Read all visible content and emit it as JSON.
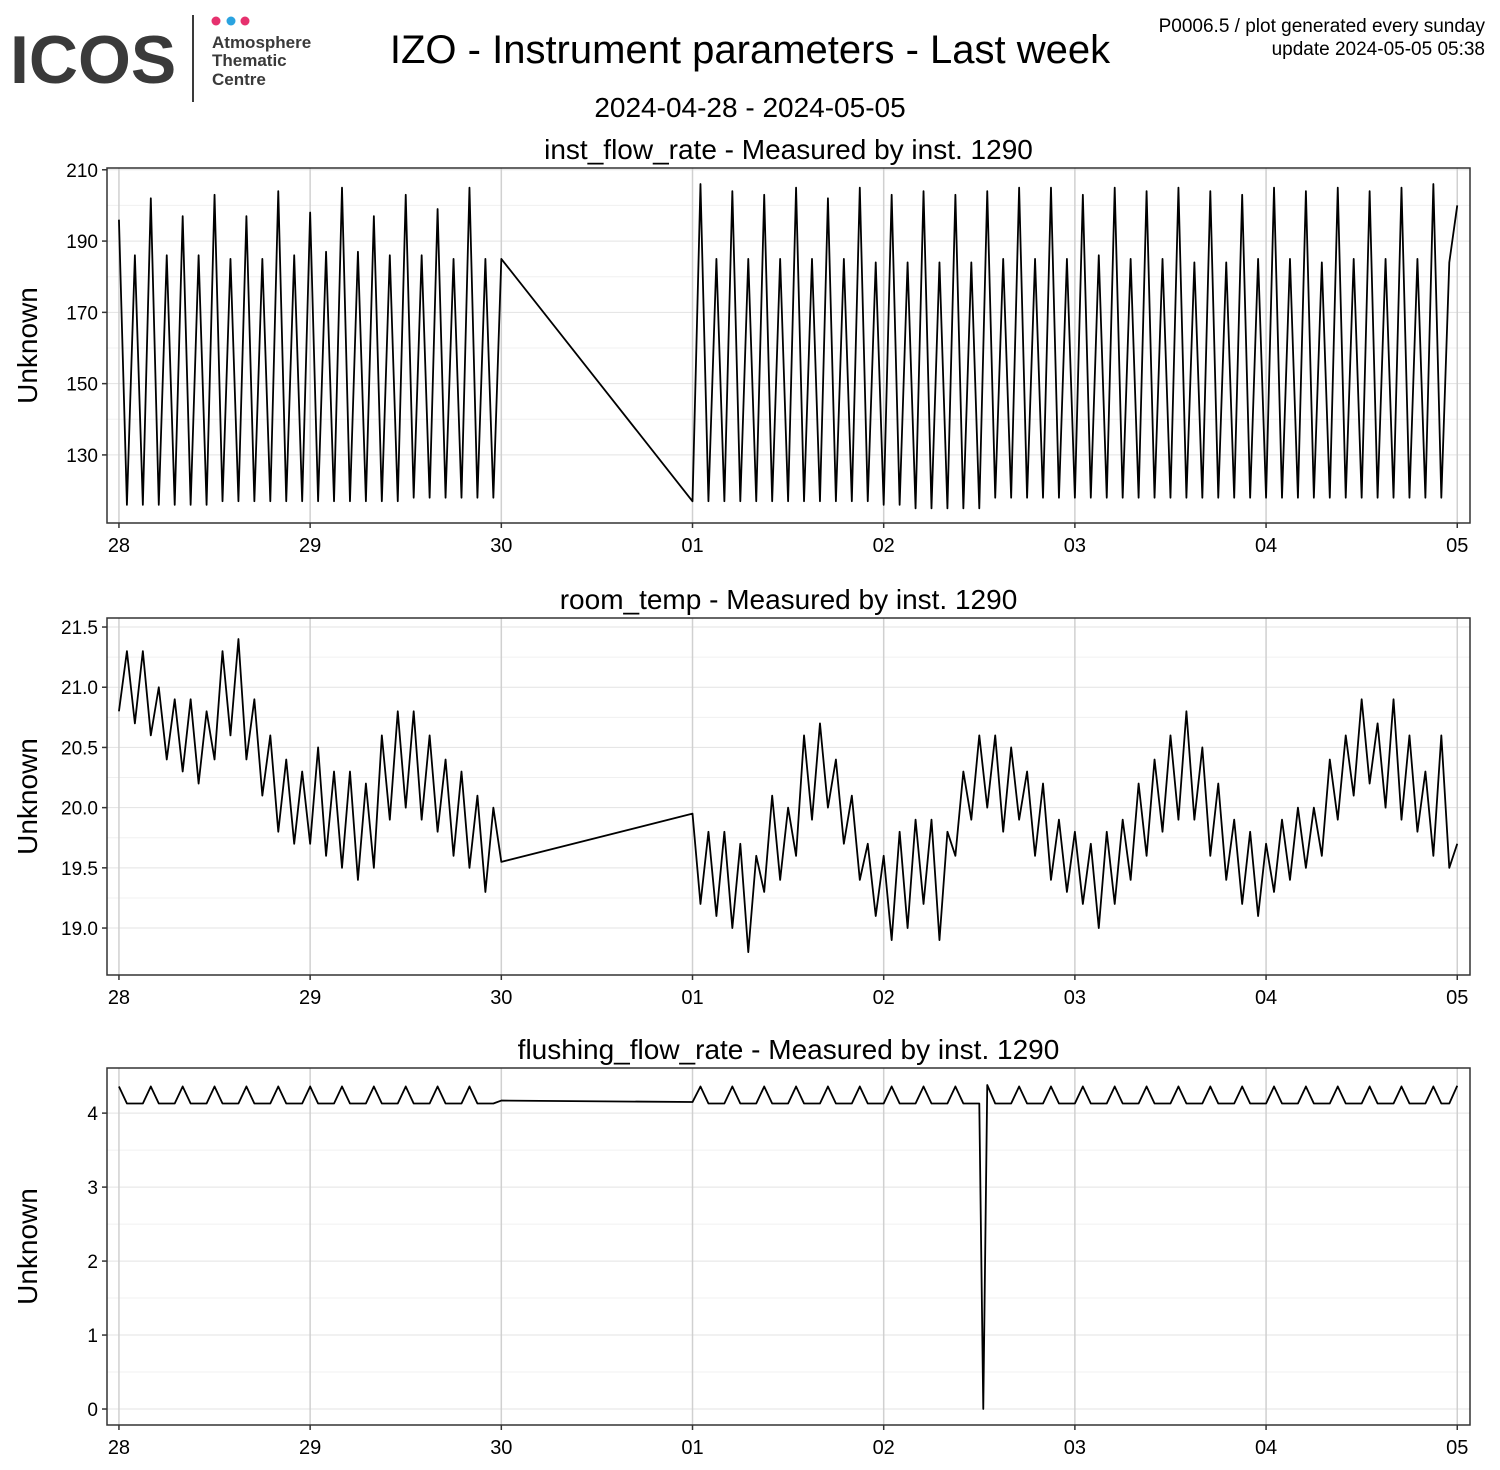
{
  "header": {
    "logo": "ICOS",
    "logo_lines": [
      "Atmosphere",
      "Thematic",
      "Centre"
    ],
    "title": "IZO - Instrument parameters - Last week",
    "subtitle": "2024-04-28 - 2024-05-05",
    "note": "P0006.5 / plot generated every sunday",
    "update": "update  2024-05-05 05:38"
  },
  "chart_data": [
    {
      "type": "line",
      "title": "inst_flow_rate - Measured by inst. 1290",
      "y_label": "Unknown",
      "color": "#000000",
      "grid": true,
      "x": [
        0,
        1,
        2,
        3,
        4,
        5,
        6,
        7,
        8,
        9,
        10,
        11,
        12,
        13,
        14,
        15,
        16,
        17,
        18,
        19,
        20,
        21,
        22,
        23,
        24,
        25,
        26,
        27,
        28,
        29,
        30,
        31,
        32,
        33,
        34,
        35,
        36,
        37,
        38,
        39,
        40,
        41,
        42,
        43,
        44,
        45,
        46,
        47,
        48,
        72,
        73,
        74,
        75,
        76,
        77,
        78,
        79,
        80,
        81,
        82,
        83,
        84,
        85,
        86,
        87,
        88,
        89,
        90,
        91,
        92,
        93,
        94,
        95,
        96,
        97,
        98,
        99,
        100,
        101,
        102,
        103,
        104,
        105,
        106,
        107,
        108,
        109,
        110,
        111,
        112,
        113,
        114,
        115,
        116,
        117,
        118,
        119,
        120,
        121,
        122,
        123,
        124,
        125,
        126,
        127,
        128,
        129,
        130,
        131,
        132,
        133,
        134,
        135,
        136,
        137,
        138,
        139,
        140,
        141,
        142,
        143,
        144,
        145,
        146,
        147,
        148,
        149,
        150,
        151,
        152,
        153,
        154,
        155,
        156,
        157,
        158,
        159,
        160,
        161,
        162,
        163,
        164,
        165,
        166,
        167,
        168
      ],
      "values": [
        196,
        116,
        186,
        116,
        202,
        116,
        186,
        116,
        197,
        116,
        186,
        116,
        203,
        117,
        185,
        117,
        197,
        117,
        185,
        117,
        204,
        117,
        186,
        117,
        198,
        117,
        187,
        117,
        205,
        117,
        187,
        117,
        197,
        117,
        186,
        117,
        203,
        118,
        186,
        118,
        199,
        118,
        185,
        118,
        205,
        118,
        185,
        118,
        185,
        117,
        206,
        117,
        185,
        117,
        204,
        117,
        185,
        117,
        203,
        117,
        185,
        117,
        205,
        117,
        185,
        117,
        202,
        117,
        185,
        117,
        205,
        117,
        184,
        116,
        203,
        116,
        184,
        115,
        204,
        115,
        184,
        115,
        203,
        115,
        184,
        115,
        204,
        118,
        185,
        118,
        205,
        118,
        185,
        118,
        205,
        118,
        185,
        118,
        203,
        118,
        186,
        118,
        205,
        118,
        185,
        118,
        204,
        118,
        185,
        118,
        205,
        118,
        184,
        118,
        204,
        118,
        184,
        118,
        203,
        118,
        185,
        118,
        205,
        118,
        185,
        118,
        204,
        118,
        184,
        118,
        205,
        118,
        185,
        118,
        204,
        118,
        185,
        118,
        205,
        118,
        185,
        118,
        206,
        118,
        184,
        200
      ],
      "xlim": [
        -1.5,
        169.6
      ],
      "ylim": [
        110.9,
        210.5
      ],
      "yticks": [
        130,
        150,
        170,
        190,
        210
      ],
      "xticks": [
        {
          "value": 0,
          "label": "28"
        },
        {
          "value": 24,
          "label": "29"
        },
        {
          "value": 48,
          "label": "30"
        },
        {
          "value": 72,
          "label": "01"
        },
        {
          "value": 96,
          "label": "02"
        },
        {
          "value": 120,
          "label": "03"
        },
        {
          "value": 144,
          "label": "04"
        },
        {
          "value": 168,
          "label": "05"
        }
      ]
    },
    {
      "type": "line",
      "title": "room_temp - Measured by inst. 1290",
      "y_label": "Unknown",
      "color": "#000000",
      "grid": true,
      "x": [
        0,
        1,
        2,
        3,
        4,
        5,
        6,
        7,
        8,
        9,
        10,
        11,
        12,
        13,
        14,
        15,
        16,
        17,
        18,
        19,
        20,
        21,
        22,
        23,
        24,
        25,
        26,
        27,
        28,
        29,
        30,
        31,
        32,
        33,
        34,
        35,
        36,
        37,
        38,
        39,
        40,
        41,
        42,
        43,
        44,
        45,
        46,
        47,
        48,
        72,
        73,
        74,
        75,
        76,
        77,
        78,
        79,
        80,
        81,
        82,
        83,
        84,
        85,
        86,
        87,
        88,
        89,
        90,
        91,
        92,
        93,
        94,
        95,
        96,
        97,
        98,
        99,
        100,
        101,
        102,
        103,
        104,
        105,
        106,
        107,
        108,
        109,
        110,
        111,
        112,
        113,
        114,
        115,
        116,
        117,
        118,
        119,
        120,
        121,
        122,
        123,
        124,
        125,
        126,
        127,
        128,
        129,
        130,
        131,
        132,
        133,
        134,
        135,
        136,
        137,
        138,
        139,
        140,
        141,
        142,
        143,
        144,
        145,
        146,
        147,
        148,
        149,
        150,
        151,
        152,
        153,
        154,
        155,
        156,
        157,
        158,
        159,
        160,
        161,
        162,
        163,
        164,
        165,
        166,
        167,
        168
      ],
      "values": [
        20.8,
        21.3,
        20.7,
        21.3,
        20.6,
        21.0,
        20.4,
        20.9,
        20.3,
        20.9,
        20.2,
        20.8,
        20.4,
        21.3,
        20.6,
        21.4,
        20.4,
        20.9,
        20.1,
        20.6,
        19.8,
        20.4,
        19.7,
        20.3,
        19.7,
        20.5,
        19.6,
        20.3,
        19.5,
        20.3,
        19.4,
        20.2,
        19.5,
        20.6,
        19.9,
        20.8,
        20.0,
        20.8,
        19.9,
        20.6,
        19.8,
        20.4,
        19.6,
        20.3,
        19.5,
        20.1,
        19.3,
        20.0,
        19.55,
        19.95,
        19.2,
        19.8,
        19.1,
        19.8,
        19.0,
        19.7,
        18.8,
        19.6,
        19.3,
        20.1,
        19.4,
        20.0,
        19.6,
        20.6,
        19.9,
        20.7,
        20.0,
        20.4,
        19.7,
        20.1,
        19.4,
        19.7,
        19.1,
        19.6,
        18.9,
        19.8,
        19.0,
        19.9,
        19.2,
        19.9,
        18.9,
        19.8,
        19.6,
        20.3,
        19.9,
        20.6,
        20.0,
        20.6,
        19.8,
        20.5,
        19.9,
        20.3,
        19.6,
        20.2,
        19.4,
        19.9,
        19.3,
        19.8,
        19.2,
        19.7,
        19.0,
        19.8,
        19.2,
        19.9,
        19.4,
        20.2,
        19.6,
        20.4,
        19.8,
        20.6,
        19.9,
        20.8,
        19.9,
        20.5,
        19.6,
        20.2,
        19.4,
        19.9,
        19.2,
        19.8,
        19.1,
        19.7,
        19.3,
        19.9,
        19.4,
        20.0,
        19.5,
        20.0,
        19.6,
        20.4,
        19.9,
        20.6,
        20.1,
        20.9,
        20.2,
        20.7,
        20.0,
        20.9,
        19.9,
        20.6,
        19.8,
        20.3,
        19.6,
        20.6,
        19.5,
        19.7
      ],
      "xlim": [
        -1.5,
        169.6
      ],
      "ylim": [
        18.61,
        21.575
      ],
      "yticks": [
        {
          "value": 19,
          "label": "19.0"
        },
        19.5,
        {
          "value": 20,
          "label": "20.0"
        },
        20.5,
        {
          "value": 21,
          "label": "21.0"
        },
        21.5
      ],
      "xticks": [
        {
          "value": 0,
          "label": "28"
        },
        {
          "value": 24,
          "label": "29"
        },
        {
          "value": 48,
          "label": "30"
        },
        {
          "value": 72,
          "label": "01"
        },
        {
          "value": 96,
          "label": "02"
        },
        {
          "value": 120,
          "label": "03"
        },
        {
          "value": 144,
          "label": "04"
        },
        {
          "value": 168,
          "label": "05"
        }
      ]
    },
    {
      "type": "line",
      "title": "flushing_flow_rate - Measured by inst. 1290",
      "y_label": "Unknown",
      "color": "#000000",
      "grid": true,
      "x": [
        0,
        1,
        2,
        3,
        4,
        5,
        6,
        7,
        8,
        9,
        10,
        11,
        12,
        13,
        14,
        15,
        16,
        17,
        18,
        19,
        20,
        21,
        22,
        23,
        24,
        25,
        26,
        27,
        28,
        29,
        30,
        31,
        32,
        33,
        34,
        35,
        36,
        37,
        38,
        39,
        40,
        41,
        42,
        43,
        44,
        45,
        46,
        47,
        48,
        72,
        73,
        74,
        75,
        76,
        77,
        78,
        79,
        80,
        81,
        82,
        83,
        84,
        85,
        86,
        87,
        88,
        89,
        90,
        91,
        92,
        93,
        94,
        95,
        96,
        97,
        98,
        99,
        100,
        101,
        102,
        103,
        104,
        105,
        106,
        107,
        108,
        108.5,
        109,
        110,
        111,
        112,
        113,
        114,
        115,
        116,
        117,
        118,
        119,
        120,
        121,
        122,
        123,
        124,
        125,
        126,
        127,
        128,
        129,
        130,
        131,
        132,
        133,
        134,
        135,
        136,
        137,
        138,
        139,
        140,
        141,
        142,
        143,
        144,
        145,
        146,
        147,
        148,
        149,
        150,
        151,
        152,
        153,
        154,
        155,
        156,
        157,
        158,
        159,
        160,
        161,
        162,
        163,
        164,
        165,
        166,
        167,
        168
      ],
      "values": [
        4.36,
        4.13,
        4.13,
        4.13,
        4.36,
        4.13,
        4.13,
        4.13,
        4.36,
        4.13,
        4.13,
        4.13,
        4.36,
        4.13,
        4.13,
        4.13,
        4.36,
        4.13,
        4.13,
        4.13,
        4.36,
        4.13,
        4.13,
        4.13,
        4.36,
        4.13,
        4.13,
        4.13,
        4.36,
        4.13,
        4.13,
        4.13,
        4.36,
        4.13,
        4.13,
        4.13,
        4.36,
        4.13,
        4.13,
        4.13,
        4.36,
        4.13,
        4.13,
        4.13,
        4.36,
        4.13,
        4.13,
        4.13,
        4.17,
        4.15,
        4.36,
        4.13,
        4.13,
        4.13,
        4.36,
        4.13,
        4.13,
        4.13,
        4.36,
        4.13,
        4.13,
        4.13,
        4.36,
        4.13,
        4.13,
        4.13,
        4.36,
        4.13,
        4.13,
        4.13,
        4.36,
        4.13,
        4.13,
        4.13,
        4.36,
        4.13,
        4.13,
        4.13,
        4.36,
        4.13,
        4.13,
        4.13,
        4.36,
        4.13,
        4.13,
        4.13,
        0,
        4.38,
        4.13,
        4.13,
        4.13,
        4.36,
        4.13,
        4.13,
        4.13,
        4.36,
        4.13,
        4.13,
        4.13,
        4.36,
        4.13,
        4.13,
        4.13,
        4.36,
        4.13,
        4.13,
        4.13,
        4.36,
        4.13,
        4.13,
        4.13,
        4.36,
        4.13,
        4.13,
        4.13,
        4.36,
        4.13,
        4.13,
        4.13,
        4.36,
        4.13,
        4.13,
        4.13,
        4.36,
        4.13,
        4.13,
        4.13,
        4.36,
        4.13,
        4.13,
        4.13,
        4.36,
        4.13,
        4.13,
        4.13,
        4.36,
        4.13,
        4.13,
        4.13,
        4.36,
        4.13,
        4.13,
        4.13,
        4.36,
        4.13,
        4.13,
        4.37
      ],
      "xlim": [
        -1.5,
        169.6
      ],
      "ylim": [
        -0.216,
        4.61
      ],
      "yticks": [
        0,
        1,
        2,
        3,
        4
      ],
      "xticks": [
        {
          "value": 0,
          "label": "28"
        },
        {
          "value": 24,
          "label": "29"
        },
        {
          "value": 48,
          "label": "30"
        },
        {
          "value": 72,
          "label": "01"
        },
        {
          "value": 96,
          "label": "02"
        },
        {
          "value": 120,
          "label": "03"
        },
        {
          "value": 144,
          "label": "04"
        },
        {
          "value": 168,
          "label": "05"
        }
      ]
    }
  ]
}
